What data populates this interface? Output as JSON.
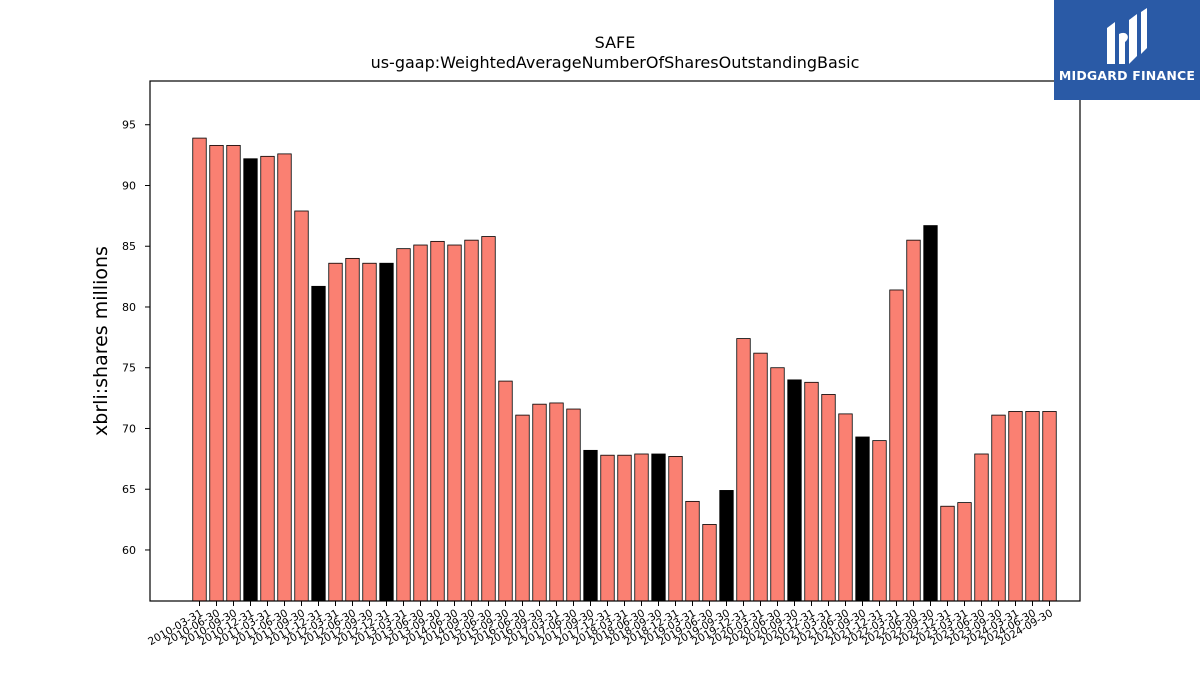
{
  "brand": {
    "name": "MIDGARD FINANCE",
    "bg_color": "#2a5aa6"
  },
  "chart_data": {
    "type": "bar",
    "title": "SAFE",
    "subtitle": "us-gaap:WeightedAverageNumberOfSharesOutstandingBasic",
    "xlabel": "",
    "ylabel": "xbrli:shares millions",
    "ylim": [
      55.8,
      98.6
    ],
    "yticks": [
      60,
      65,
      70,
      75,
      80,
      85,
      90,
      95
    ],
    "grid": false,
    "colors": {
      "default": "#fa8072",
      "highlight": "#000000",
      "edge": "#000000"
    },
    "categories": [
      "2010-03-31",
      "2010-06-30",
      "2010-09-30",
      "2010-12-31",
      "2011-03-31",
      "2011-06-30",
      "2011-09-30",
      "2011-12-31",
      "2012-03-31",
      "2012-06-30",
      "2012-09-30",
      "2012-12-31",
      "2013-03-31",
      "2013-06-30",
      "2013-09-30",
      "2014-06-30",
      "2014-09-30",
      "2015-06-30",
      "2015-09-30",
      "2016-06-30",
      "2016-09-30",
      "2017-03-31",
      "2017-06-30",
      "2017-09-30",
      "2017-12-31",
      "2018-03-31",
      "2018-06-30",
      "2018-09-30",
      "2018-12-31",
      "2019-03-31",
      "2019-06-30",
      "2019-09-30",
      "2019-12-31",
      "2020-03-31",
      "2020-06-30",
      "2020-09-30",
      "2020-12-31",
      "2021-03-31",
      "2021-06-30",
      "2021-09-30",
      "2021-12-31",
      "2022-03-31",
      "2022-06-30",
      "2022-09-30",
      "2022-12-31",
      "2023-03-31",
      "2023-06-30",
      "2023-09-30",
      "2024-03-31",
      "2024-06-30",
      "2024-09-30"
    ],
    "values": [
      93.9,
      93.3,
      93.3,
      92.2,
      92.4,
      92.6,
      87.9,
      81.7,
      83.6,
      84.0,
      83.6,
      83.6,
      84.8,
      85.1,
      85.4,
      85.1,
      85.5,
      85.8,
      73.9,
      71.1,
      72.0,
      72.1,
      71.6,
      68.2,
      67.8,
      67.8,
      67.9,
      67.9,
      67.7,
      64.0,
      62.1,
      64.9,
      77.4,
      76.2,
      75.0,
      74.0,
      73.8,
      72.8,
      71.2,
      69.3,
      69.0,
      81.4,
      85.5,
      86.7,
      63.6,
      63.9,
      67.9,
      71.1,
      71.4,
      71.4,
      71.4
    ],
    "highlighted": [
      false,
      false,
      false,
      true,
      false,
      false,
      false,
      true,
      false,
      false,
      false,
      true,
      false,
      false,
      false,
      false,
      false,
      false,
      false,
      false,
      false,
      false,
      false,
      true,
      false,
      false,
      false,
      true,
      false,
      false,
      false,
      true,
      false,
      false,
      false,
      true,
      false,
      false,
      false,
      true,
      false,
      false,
      false,
      true,
      false,
      false,
      false,
      false,
      false,
      false,
      false
    ]
  }
}
